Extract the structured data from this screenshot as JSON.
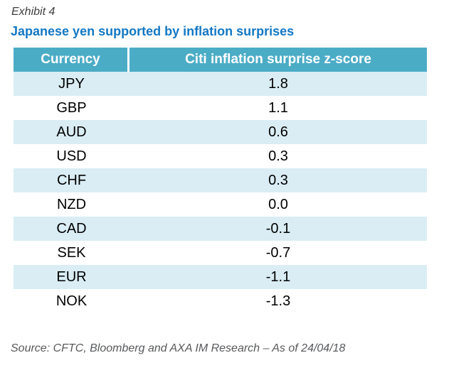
{
  "exhibit": {
    "label": "Exhibit 4",
    "title": "Japanese yen supported by inflation surprises"
  },
  "table": {
    "columns": [
      "Currency",
      "Citi inflation surprise z-score"
    ],
    "rows": [
      {
        "currency": "JPY",
        "zscore": "1.8"
      },
      {
        "currency": "GBP",
        "zscore": "1.1"
      },
      {
        "currency": "AUD",
        "zscore": "0.6"
      },
      {
        "currency": "USD",
        "zscore": "0.3"
      },
      {
        "currency": "CHF",
        "zscore": "0.3"
      },
      {
        "currency": "NZD",
        "zscore": "0.0"
      },
      {
        "currency": "CAD",
        "zscore": "-0.1"
      },
      {
        "currency": "SEK",
        "zscore": "-0.7"
      },
      {
        "currency": "EUR",
        "zscore": "-1.1"
      },
      {
        "currency": "NOK",
        "zscore": "-1.3"
      }
    ]
  },
  "source": "Source: CFTC, Bloomberg and AXA IM Research – As of 24/04/18",
  "colors": {
    "header_bg": "#4BACC6",
    "row_stripe": "#DAEDF4",
    "title_blue": "#1478C4",
    "exhibit_label_gray": "#404040",
    "source_gray": "#58595B"
  },
  "chart_data": {
    "type": "table",
    "title": "Japanese yen supported by inflation surprises",
    "columns": [
      "Currency",
      "Citi inflation surprise z-score"
    ],
    "categories": [
      "JPY",
      "GBP",
      "AUD",
      "USD",
      "CHF",
      "NZD",
      "CAD",
      "SEK",
      "EUR",
      "NOK"
    ],
    "values": [
      1.8,
      1.1,
      0.6,
      0.3,
      0.3,
      0.0,
      -0.1,
      -0.7,
      -1.1,
      -1.3
    ],
    "source": "Source: CFTC, Bloomberg and AXA IM Research – As of 24/04/18"
  }
}
